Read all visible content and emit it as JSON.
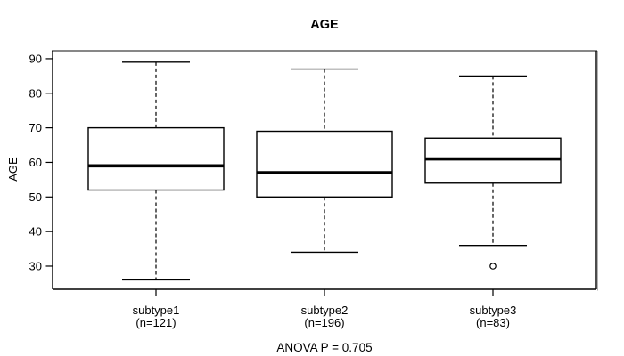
{
  "figure": {
    "title": "AGE",
    "footer": "ANOVA P = 0.705"
  },
  "chart_data": {
    "type": "boxplot",
    "title": "AGE",
    "xlabel": "",
    "ylabel": "AGE",
    "ylim": [
      23.3,
      92.3
    ],
    "yticks": [
      30,
      40,
      50,
      60,
      70,
      80,
      90
    ],
    "grid": false,
    "legend": null,
    "annotation": "ANOVA P = 0.705",
    "groups": [
      {
        "label": "subtype1",
        "sublabel": "(n=121)",
        "n": 121,
        "stats": {
          "whisker_low": 26,
          "q1": 52,
          "median": 59,
          "q3": 70,
          "whisker_high": 89
        },
        "outliers": []
      },
      {
        "label": "subtype2",
        "sublabel": "(n=196)",
        "n": 196,
        "stats": {
          "whisker_low": 34,
          "q1": 50,
          "median": 57,
          "q3": 69,
          "whisker_high": 87
        },
        "outliers": []
      },
      {
        "label": "subtype3",
        "sublabel": "(n=83)",
        "n": 83,
        "stats": {
          "whisker_low": 36,
          "q1": 54,
          "median": 61,
          "q3": 67,
          "whisker_high": 85
        },
        "outliers": [
          30
        ]
      }
    ],
    "colors": {
      "line": "#000000",
      "box_fill": "#ffffff",
      "frame_top": "#878787",
      "frame_shadow": "#b2b2b2",
      "background": "#ffffff"
    }
  }
}
